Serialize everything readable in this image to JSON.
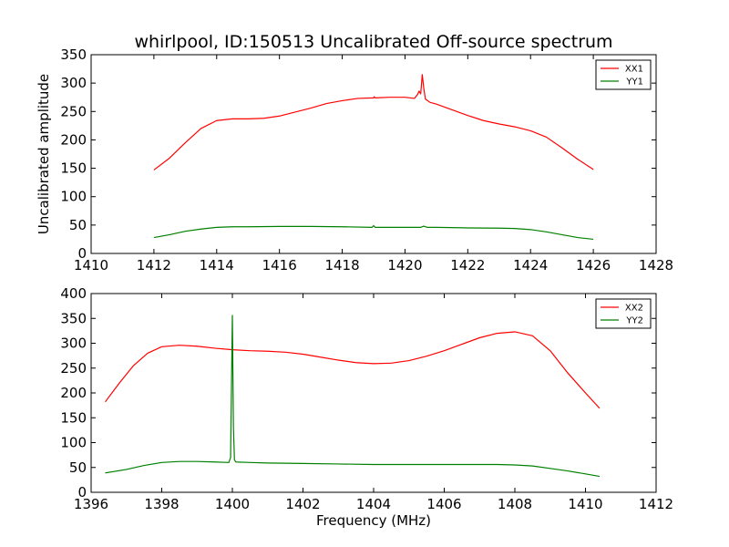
{
  "title": "whirlpool, ID:150513 Uncalibrated Off-source spectrum",
  "colors": {
    "xx": "#ff0000",
    "yy": "#008000",
    "axes": "#000000",
    "background": "#ffffff"
  },
  "chart_data": [
    {
      "type": "line",
      "title": "whirlpool, ID:150513 Uncalibrated Off-source spectrum",
      "xlabel": "",
      "ylabel": "Uncalibrated amplitude",
      "xlim": [
        1410,
        1428
      ],
      "ylim": [
        0,
        350
      ],
      "xticks": [
        "1410",
        "1412",
        "1414",
        "1416",
        "1418",
        "1420",
        "1422",
        "1424",
        "1426",
        "1428"
      ],
      "yticks": [
        "0",
        "50",
        "100",
        "150",
        "200",
        "250",
        "300",
        "350"
      ],
      "grid": false,
      "legend": "top-right",
      "series": [
        {
          "name": "XX1",
          "color": "#ff0000",
          "x": [
            1412.0,
            1412.5,
            1413.0,
            1413.5,
            1414.0,
            1414.5,
            1415.0,
            1415.5,
            1416.0,
            1416.5,
            1417.0,
            1417.5,
            1418.0,
            1418.5,
            1419.0,
            1419.02,
            1419.05,
            1419.5,
            1420.0,
            1420.3,
            1420.4,
            1420.45,
            1420.5,
            1420.55,
            1420.6,
            1420.65,
            1420.7,
            1420.8,
            1421.0,
            1421.5,
            1422.0,
            1422.5,
            1423.0,
            1423.5,
            1424.0,
            1424.5,
            1425.0,
            1425.5,
            1426.0
          ],
          "y": [
            147,
            168,
            195,
            220,
            234,
            237,
            237,
            238,
            242,
            249,
            256,
            264,
            269,
            273,
            274,
            276,
            274,
            275,
            275,
            273,
            280,
            286,
            281,
            315,
            290,
            272,
            270,
            266,
            263,
            253,
            243,
            234,
            228,
            223,
            216,
            205,
            186,
            166,
            148
          ]
        },
        {
          "name": "YY1",
          "color": "#008000",
          "x": [
            1412.0,
            1412.5,
            1413.0,
            1413.5,
            1414.0,
            1414.5,
            1415.0,
            1416.0,
            1417.0,
            1418.0,
            1418.95,
            1419.0,
            1419.05,
            1419.5,
            1420.0,
            1420.5,
            1420.6,
            1420.7,
            1421.0,
            1422.0,
            1423.0,
            1423.5,
            1424.0,
            1424.5,
            1425.0,
            1425.5,
            1426.0
          ],
          "y": [
            28,
            33,
            39,
            43,
            46,
            47,
            47,
            47.5,
            47.5,
            47,
            46,
            49,
            46,
            46,
            46,
            46,
            48,
            46,
            46,
            45,
            44.5,
            44,
            42,
            38,
            33,
            28,
            25
          ]
        }
      ]
    },
    {
      "type": "line",
      "title": "",
      "xlabel": "Frequency (MHz)",
      "ylabel": "",
      "xlim": [
        1396,
        1412
      ],
      "ylim": [
        0,
        400
      ],
      "xticks": [
        "1396",
        "1398",
        "1400",
        "1402",
        "1404",
        "1406",
        "1408",
        "1410",
        "1412"
      ],
      "yticks": [
        "0",
        "50",
        "100",
        "150",
        "200",
        "250",
        "300",
        "350",
        "400"
      ],
      "grid": false,
      "legend": "top-right",
      "series": [
        {
          "name": "XX2",
          "color": "#ff0000",
          "x": [
            1396.4,
            1396.8,
            1397.2,
            1397.6,
            1398.0,
            1398.5,
            1399.0,
            1399.5,
            1400.0,
            1400.5,
            1401.0,
            1401.5,
            1402.0,
            1402.5,
            1403.0,
            1403.5,
            1404.0,
            1404.5,
            1405.0,
            1405.5,
            1406.0,
            1406.5,
            1407.0,
            1407.5,
            1408.0,
            1408.5,
            1409.0,
            1409.5,
            1410.0,
            1410.4
          ],
          "y": [
            182,
            220,
            255,
            280,
            293,
            296,
            294,
            290,
            287,
            285,
            284,
            282,
            278,
            272,
            266,
            261,
            259,
            260,
            265,
            274,
            285,
            298,
            311,
            320,
            323,
            315,
            285,
            240,
            200,
            169
          ]
        },
        {
          "name": "YY2",
          "color": "#008000",
          "x": [
            1396.4,
            1397.0,
            1397.5,
            1398.0,
            1398.5,
            1399.0,
            1399.5,
            1399.9,
            1399.95,
            1400.0,
            1400.03,
            1400.06,
            1400.1,
            1400.5,
            1401.0,
            1402.0,
            1403.0,
            1404.0,
            1405.0,
            1406.0,
            1407.0,
            1407.5,
            1408.0,
            1408.5,
            1409.0,
            1409.5,
            1410.0,
            1410.4
          ],
          "y": [
            39,
            46,
            54,
            60,
            62,
            62,
            61,
            60,
            70,
            356,
            130,
            65,
            61,
            60,
            59,
            58,
            57,
            56,
            56,
            56,
            56,
            56,
            55,
            53,
            48,
            43,
            37,
            32
          ]
        }
      ]
    }
  ]
}
